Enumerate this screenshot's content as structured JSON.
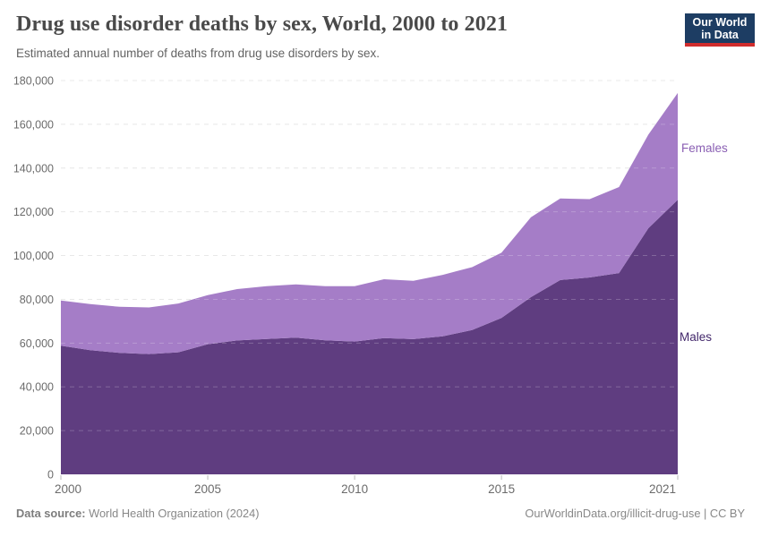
{
  "header": {
    "title": "Drug use disorder deaths by sex, World, 2000 to 2021",
    "subtitle": "Estimated annual number of deaths from drug use disorders by sex.",
    "logo": {
      "line1": "Our World",
      "line2": "in Data",
      "bg_color": "#1d3d63",
      "accent_color": "#d12d2d"
    }
  },
  "chart_data": {
    "type": "area",
    "stacked": true,
    "title": "Drug use disorder deaths by sex, World, 2000 to 2021",
    "xlabel": "",
    "ylabel": "",
    "x": [
      2000,
      2001,
      2002,
      2003,
      2004,
      2005,
      2006,
      2007,
      2008,
      2009,
      2010,
      2011,
      2012,
      2013,
      2014,
      2015,
      2016,
      2017,
      2018,
      2019,
      2020,
      2021
    ],
    "series": [
      {
        "name": "Males",
        "color": "#5f3d80",
        "label_color": "#43286b",
        "values": [
          58800,
          56800,
          55500,
          55000,
          55800,
          59500,
          61200,
          61900,
          62500,
          61300,
          60700,
          62300,
          61800,
          63100,
          66000,
          71500,
          81000,
          88800,
          90000,
          92000,
          112500,
          125500
        ]
      },
      {
        "name": "Females",
        "color": "#a57dc7",
        "label_color": "#8a5fb3",
        "values": [
          20700,
          21000,
          21100,
          21300,
          22300,
          22400,
          23500,
          24100,
          24300,
          24700,
          25300,
          26900,
          26700,
          28100,
          28700,
          29800,
          36500,
          37300,
          35800,
          39300,
          42800,
          48800
        ]
      }
    ],
    "ylim": [
      0,
      180000
    ],
    "y_tick_step": 20000,
    "y_ticks": [
      0,
      20000,
      40000,
      60000,
      80000,
      100000,
      120000,
      140000,
      160000,
      180000
    ],
    "x_ticks": [
      2000,
      2005,
      2010,
      2015,
      2021
    ],
    "grid": "dashed",
    "grid_color": "#e2e2e2",
    "tick_label_color": "#6b6b6b",
    "legend_position": "right-edge-labels"
  },
  "footer": {
    "source_label": "Data source:",
    "source_text": "World Health Organization (2024)",
    "license_text": "OurWorldinData.org/illicit-drug-use | CC BY"
  }
}
